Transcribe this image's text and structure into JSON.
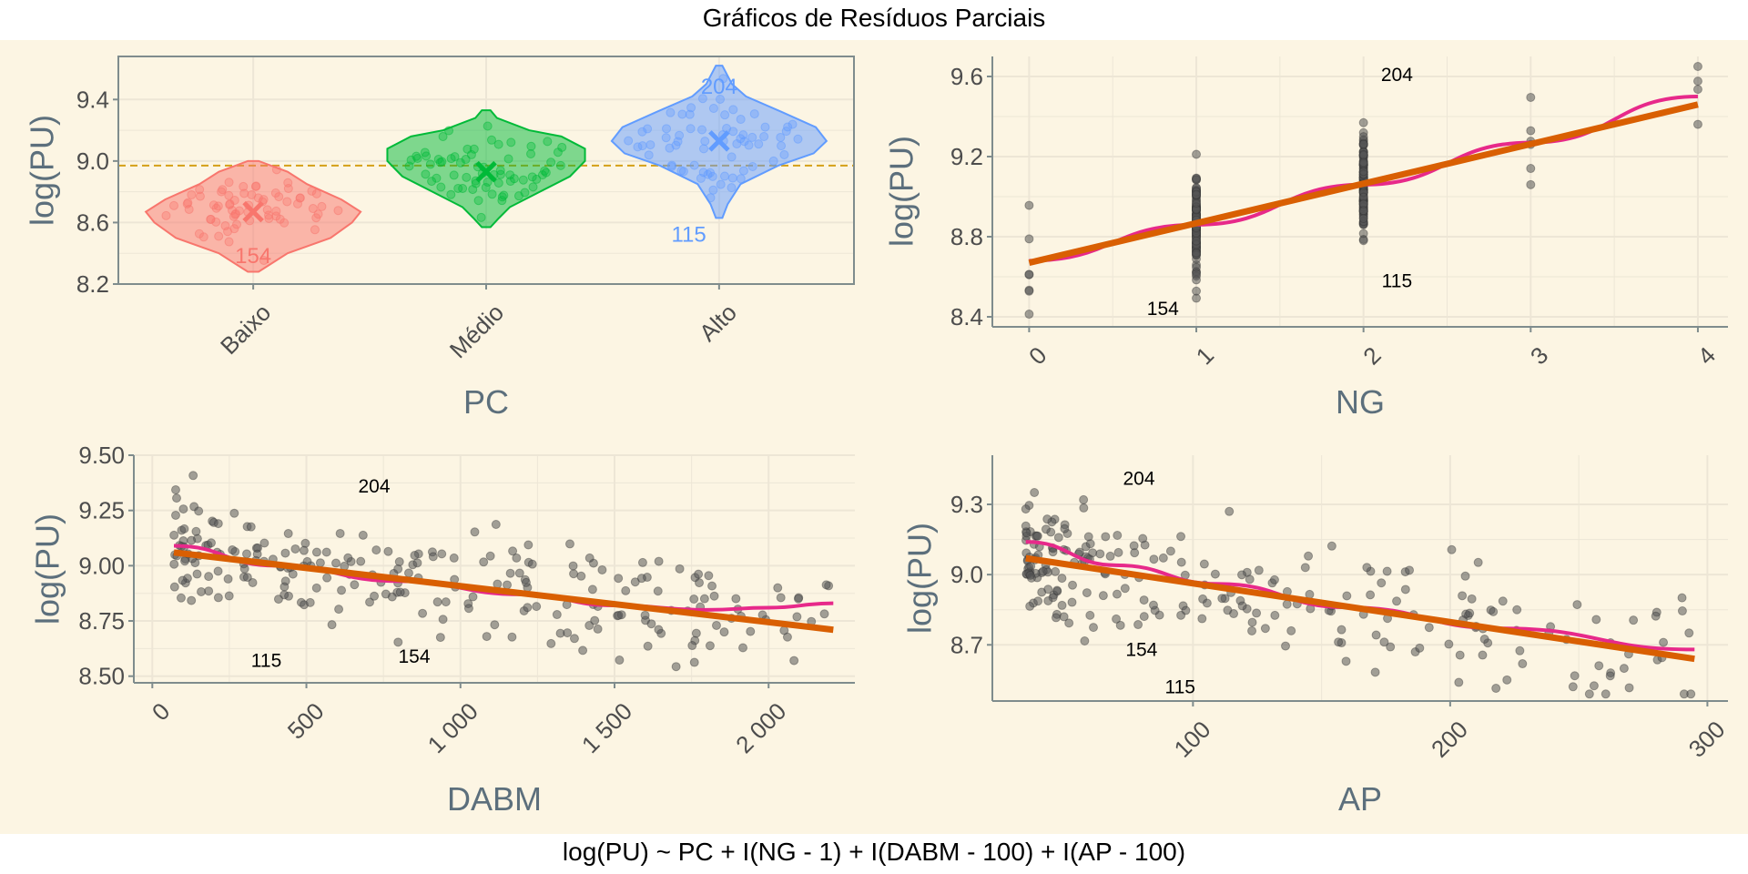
{
  "title": "Gráficos de Resíduos Parciais",
  "caption": "log(PU) ~ PC + I(NG - 1) + I(DABM - 100) + I(AP - 100)",
  "colors": {
    "band": "#fcf5e3",
    "panel": "#fcf5e3",
    "grid": "#ede6d6",
    "axis": "#7f8c8d",
    "points": "#555555",
    "fit_linear": "#d95f02",
    "fit_smooth": "#e7298a",
    "baixo": "#f8766d",
    "medio": "#00ba38",
    "alto": "#619cff",
    "ref_line": "#d4a017"
  },
  "chart_data": [
    {
      "id": "pc",
      "type": "violin",
      "xlabel": "PC",
      "ylabel": "log(PU)",
      "categories": [
        "Baixo",
        "Médio",
        "Alto"
      ],
      "ylim": [
        8.2,
        9.68
      ],
      "yticks": [
        8.2,
        8.6,
        9.0,
        9.4
      ],
      "ytick_labels": [
        "8.2",
        "8.6",
        "9.0",
        "9.4"
      ],
      "reference_line": 8.97,
      "groups": [
        {
          "name": "Baixo",
          "mean": 8.67,
          "min": 8.28,
          "max": 9.0,
          "color": "#f8766d",
          "profile": [
            [
              8.28,
              0.05
            ],
            [
              8.4,
              0.32
            ],
            [
              8.5,
              0.72
            ],
            [
              8.6,
              0.92
            ],
            [
              8.67,
              1.0
            ],
            [
              8.75,
              0.82
            ],
            [
              8.85,
              0.5
            ],
            [
              8.93,
              0.32
            ],
            [
              9.0,
              0.05
            ]
          ]
        },
        {
          "name": "Médio",
          "mean": 8.93,
          "min": 8.57,
          "max": 9.33,
          "color": "#00ba38",
          "profile": [
            [
              8.57,
              0.04
            ],
            [
              8.63,
              0.12
            ],
            [
              8.7,
              0.22
            ],
            [
              8.8,
              0.5
            ],
            [
              8.9,
              0.78
            ],
            [
              9.0,
              0.92
            ],
            [
              9.08,
              0.92
            ],
            [
              9.16,
              0.7
            ],
            [
              9.2,
              0.4
            ],
            [
              9.28,
              0.1
            ],
            [
              9.33,
              0.04
            ]
          ]
        },
        {
          "name": "Alto",
          "mean": 9.13,
          "min": 8.63,
          "max": 9.62,
          "color": "#619cff",
          "profile": [
            [
              8.63,
              0.03
            ],
            [
              8.72,
              0.08
            ],
            [
              8.85,
              0.2
            ],
            [
              8.97,
              0.55
            ],
            [
              9.05,
              0.88
            ],
            [
              9.13,
              1.0
            ],
            [
              9.22,
              0.9
            ],
            [
              9.32,
              0.58
            ],
            [
              9.42,
              0.25
            ],
            [
              9.5,
              0.12
            ],
            [
              9.62,
              0.03
            ]
          ]
        }
      ],
      "annotations": [
        {
          "text": "154",
          "cat": 0,
          "y": 8.39,
          "color": "#f8766d"
        },
        {
          "text": "204",
          "cat": 2,
          "y": 9.49,
          "color": "#619cff"
        },
        {
          "text": "115",
          "cat": 1.87,
          "y": 8.53,
          "color": "#619cff"
        }
      ]
    },
    {
      "id": "ng",
      "type": "scatter",
      "xlabel": "NG",
      "ylabel": "log(PU)",
      "xlim": [
        -0.22,
        4.18
      ],
      "ylim": [
        8.35,
        9.7
      ],
      "xticks": [
        0,
        1,
        2,
        3,
        4
      ],
      "xtick_labels": [
        "0",
        "1",
        "2",
        "3",
        "4"
      ],
      "yticks": [
        8.4,
        8.8,
        9.2,
        9.6
      ],
      "ytick_labels": [
        "8.4",
        "8.8",
        "9.2",
        "9.6"
      ],
      "linear_fit": [
        [
          0,
          8.67
        ],
        [
          4,
          9.46
        ]
      ],
      "smooth_fit": [
        [
          0,
          8.68
        ],
        [
          1,
          8.86
        ],
        [
          2,
          9.06
        ],
        [
          3,
          9.27
        ],
        [
          4,
          9.5
        ]
      ],
      "annotations": [
        {
          "text": "204",
          "x": 2.2,
          "y": 9.61
        },
        {
          "text": "115",
          "x": 2.2,
          "y": 8.58
        },
        {
          "text": "154",
          "x": 0.8,
          "y": 8.44
        }
      ]
    },
    {
      "id": "dabm",
      "type": "scatter",
      "xlabel": "DABM",
      "ylabel": "log(PU)",
      "xlim": [
        -60,
        2280
      ],
      "ylim": [
        8.47,
        9.5
      ],
      "xticks": [
        0,
        500,
        1000,
        1500,
        2000
      ],
      "xtick_labels": [
        "0",
        "500",
        "1 000",
        "1 500",
        "2 000"
      ],
      "yticks": [
        8.5,
        8.75,
        9.0,
        9.25,
        9.5
      ],
      "ytick_labels": [
        "8.50",
        "8.75",
        "9.00",
        "9.25",
        "9.50"
      ],
      "linear_fit": [
        [
          70,
          9.06
        ],
        [
          2210,
          8.71
        ]
      ],
      "smooth_fit": [
        [
          70,
          9.09
        ],
        [
          400,
          9.0
        ],
        [
          800,
          8.93
        ],
        [
          1200,
          8.87
        ],
        [
          1500,
          8.82
        ],
        [
          1800,
          8.8
        ],
        [
          2000,
          8.81
        ],
        [
          2210,
          8.83
        ]
      ],
      "annotations": [
        {
          "text": "204",
          "x": 720,
          "y": 9.36
        },
        {
          "text": "115",
          "x": 370,
          "y": 8.57
        },
        {
          "text": "154",
          "x": 850,
          "y": 8.59
        }
      ]
    },
    {
      "id": "ap",
      "type": "scatter",
      "xlabel": "AP",
      "ylabel": "log(PU)",
      "xlim": [
        22,
        308
      ],
      "ylim": [
        8.46,
        9.51
      ],
      "xticks": [
        100,
        200,
        300
      ],
      "xtick_labels": [
        "100",
        "200",
        "300"
      ],
      "yticks": [
        8.7,
        9.0,
        9.3
      ],
      "ytick_labels": [
        "8.7",
        "9.0",
        "9.3"
      ],
      "linear_fit": [
        [
          35,
          9.07
        ],
        [
          295,
          8.64
        ]
      ],
      "smooth_fit": [
        [
          35,
          9.14
        ],
        [
          70,
          9.04
        ],
        [
          110,
          8.96
        ],
        [
          160,
          8.86
        ],
        [
          220,
          8.77
        ],
        [
          295,
          8.68
        ]
      ],
      "annotations": [
        {
          "text": "204",
          "x": 79,
          "y": 9.41
        },
        {
          "text": "154",
          "x": 80,
          "y": 8.68
        },
        {
          "text": "115",
          "x": 95,
          "y": 8.52
        }
      ]
    }
  ]
}
